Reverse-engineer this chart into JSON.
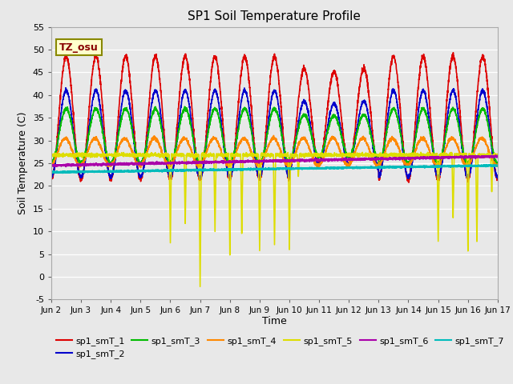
{
  "title": "SP1 Soil Temperature Profile",
  "xlabel": "Time",
  "ylabel": "Soil Temperature (C)",
  "ylim": [
    -5,
    55
  ],
  "xlim": [
    0,
    15
  ],
  "xtick_labels": [
    "Jun 2",
    "Jun 3",
    "Jun 4",
    "Jun 5",
    "Jun 6",
    "Jun 7",
    "Jun 8",
    "Jun 9",
    "Jun 10",
    "Jun 11",
    "Jun 12",
    "Jun 13",
    "Jun 14",
    "Jun 15",
    "Jun 16",
    "Jun 17"
  ],
  "ytick_values": [
    -5,
    0,
    5,
    10,
    15,
    20,
    25,
    30,
    35,
    40,
    45,
    50,
    55
  ],
  "bg_color": "#e8e8e8",
  "fig_color": "#e8e8e8",
  "annotation_text": "TZ_osu",
  "annotation_color": "#880000",
  "annotation_bg": "#ffffcc",
  "annotation_border": "#888800",
  "series": {
    "sp1_smT_1": {
      "color": "#dd0000",
      "lw": 1.2
    },
    "sp1_smT_2": {
      "color": "#0000cc",
      "lw": 1.2
    },
    "sp1_smT_3": {
      "color": "#00bb00",
      "lw": 1.2
    },
    "sp1_smT_4": {
      "color": "#ff8800",
      "lw": 1.2
    },
    "sp1_smT_5": {
      "color": "#dddd00",
      "lw": 1.2
    },
    "sp1_smT_6": {
      "color": "#aa00aa",
      "lw": 1.5
    },
    "sp1_smT_7": {
      "color": "#00bbbb",
      "lw": 1.5
    }
  }
}
